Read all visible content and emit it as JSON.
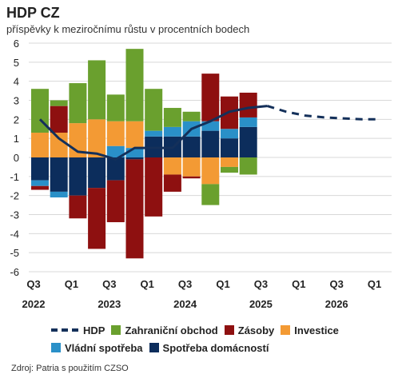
{
  "header": {
    "title": "HDP CZ",
    "subtitle": "příspěvky k meziročnímu růstu v procentních bodech"
  },
  "source": "Zdroj: Patria s použitím CZSO",
  "colors": {
    "hdp": "#14305a",
    "zahranicni": "#6aa02e",
    "zasoby": "#8e1010",
    "investice": "#f39a34",
    "vladni": "#2a90c8",
    "domacnosti": "#0c2d5c"
  },
  "chart_data": {
    "type": "bar",
    "stacked": true,
    "ylim": [
      -6,
      6
    ],
    "yticks": [
      "-6",
      "-5",
      "-4",
      "-3",
      "-2",
      "-1",
      "0",
      "1",
      "2",
      "3",
      "4",
      "5",
      "6"
    ],
    "x_tick_labels": [
      {
        "q": "Q3",
        "year": "2022"
      },
      {
        "q": "Q1",
        "year": ""
      },
      {
        "q": "Q3",
        "year": "2023"
      },
      {
        "q": "Q1",
        "year": ""
      },
      {
        "q": "Q3",
        "year": "2024"
      },
      {
        "q": "Q1",
        "year": ""
      },
      {
        "q": "Q3",
        "year": "2025"
      },
      {
        "q": "Q1",
        "year": ""
      },
      {
        "q": "Q3",
        "year": "2026"
      },
      {
        "q": "Q1",
        "year": ""
      }
    ],
    "categories": [
      "Q3 2022",
      "Q4 2022",
      "Q1 2023",
      "Q2 2023",
      "Q3 2023",
      "Q4 2023",
      "Q1 2024",
      "Q2 2024",
      "Q3 2024",
      "Q4 2024",
      "Q1 2025",
      "Q2 2025",
      "Q3 2025",
      "Q4 2025",
      "Q1 2026",
      "Q2 2026",
      "Q3 2026",
      "Q4 2026",
      "Q1 2027"
    ],
    "series": [
      {
        "name": "Spotřeba domácností",
        "key": "domacnosti",
        "values": [
          -1.2,
          -1.8,
          -2.0,
          -1.6,
          -1.2,
          -0.1,
          1.1,
          1.1,
          1.1,
          1.4,
          1.0,
          1.6,
          null,
          null,
          null,
          null,
          null,
          null,
          null
        ]
      },
      {
        "name": "Vládní spotřeba",
        "key": "vladni",
        "values": [
          -0.3,
          -0.3,
          0.0,
          0.0,
          0.6,
          0.5,
          0.3,
          0.5,
          0.8,
          0.5,
          0.5,
          0.5,
          null,
          null,
          null,
          null,
          null,
          null,
          null
        ]
      },
      {
        "name": "Investice",
        "key": "investice",
        "values": [
          1.3,
          1.3,
          1.8,
          2.0,
          1.3,
          1.4,
          0.0,
          -0.9,
          -1.0,
          -1.4,
          -0.5,
          0.0,
          null,
          null,
          null,
          null,
          null,
          null,
          null
        ]
      },
      {
        "name": "Zásoby",
        "key": "zasoby",
        "values": [
          -0.2,
          1.4,
          -1.2,
          -3.2,
          -2.2,
          -5.2,
          -3.1,
          -0.9,
          -0.1,
          2.5,
          1.7,
          1.3,
          null,
          null,
          null,
          null,
          null,
          null,
          null
        ]
      },
      {
        "name": "Zahraniční obchod",
        "key": "zahranicni",
        "values": [
          2.3,
          0.3,
          2.1,
          3.1,
          1.4,
          3.8,
          2.2,
          1.0,
          0.5,
          -1.1,
          -0.3,
          -0.9,
          null,
          null,
          null,
          null,
          null,
          null,
          null
        ]
      }
    ],
    "hdp": {
      "name": "HDP",
      "values": [
        2.0,
        1.0,
        0.3,
        0.2,
        -0.1,
        0.5,
        0.5,
        0.5,
        1.5,
        1.9,
        2.4,
        2.6,
        2.7,
        2.4,
        2.2,
        2.1,
        2.05,
        2.0,
        2.0
      ],
      "forecast_from_index": 12
    }
  },
  "legend": {
    "items": [
      {
        "label": "HDP",
        "key": "hdp",
        "kind": "line"
      },
      {
        "label": "Zahraniční obchod",
        "key": "zahranicni",
        "kind": "box"
      },
      {
        "label": "Zásoby",
        "key": "zasoby",
        "kind": "box"
      },
      {
        "label": "Investice",
        "key": "investice",
        "kind": "box"
      },
      {
        "label": "Vládní spotřeba",
        "key": "vladni",
        "kind": "box"
      },
      {
        "label": "Spotřeba domácností",
        "key": "domacnosti",
        "kind": "box"
      }
    ]
  }
}
